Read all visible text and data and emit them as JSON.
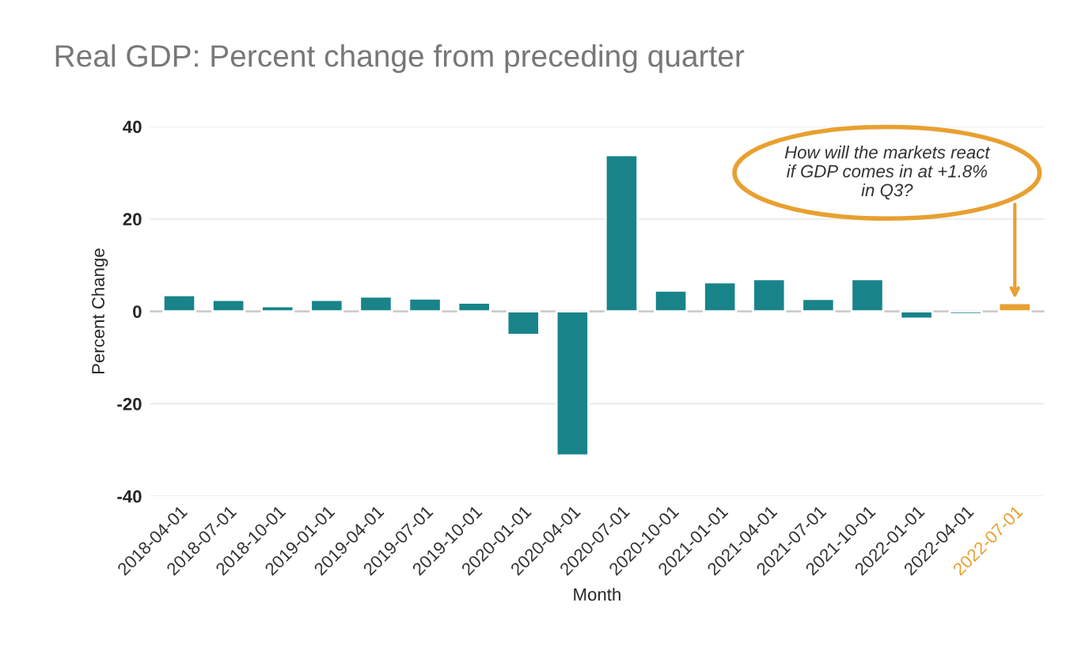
{
  "chart_data": {
    "type": "bar",
    "title": "Real GDP: Percent change from preceding quarter",
    "xlabel": "Month",
    "ylabel": "Percent Change",
    "categories": [
      "2018-04-01",
      "2018-07-01",
      "2018-10-01",
      "2019-01-01",
      "2019-04-01",
      "2019-07-01",
      "2019-10-01",
      "2020-01-01",
      "2020-04-01",
      "2020-07-01",
      "2020-10-01",
      "2021-01-01",
      "2021-04-01",
      "2021-07-01",
      "2021-10-01",
      "2022-01-01",
      "2022-04-01",
      "2022-07-01"
    ],
    "values": [
      3.5,
      2.5,
      1.1,
      2.5,
      3.2,
      2.8,
      1.9,
      -5.1,
      -31.2,
      33.8,
      4.5,
      6.3,
      7.0,
      2.7,
      7.0,
      -1.6,
      -0.6,
      1.8
    ],
    "colors": [
      "#18848a",
      "#18848a",
      "#18848a",
      "#18848a",
      "#18848a",
      "#18848a",
      "#18848a",
      "#18848a",
      "#18848a",
      "#18848a",
      "#18848a",
      "#18848a",
      "#18848a",
      "#18848a",
      "#18848a",
      "#18848a",
      "#18848a",
      "#e8a030"
    ],
    "ylim": [
      -40,
      40
    ],
    "yticks": [
      -40,
      -20,
      0,
      20,
      40
    ],
    "grid": "y",
    "annotations": [
      "How will the markets react\nif GDP comes in at +1.8%\nin Q3?"
    ]
  }
}
